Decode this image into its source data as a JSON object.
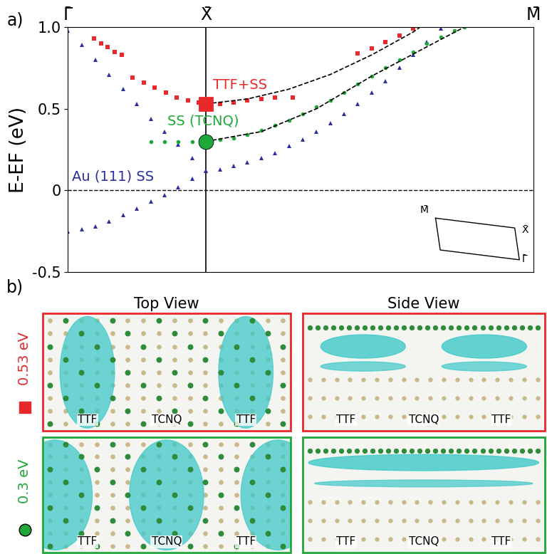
{
  "chart_data": {
    "type": "line",
    "panel_label": "a)",
    "y_label": "E-EF (eV)",
    "xlim": [
      0,
      3.37
    ],
    "xticks": [
      {
        "value": 0,
        "label": "Γ̄"
      },
      {
        "value": 1,
        "label": "X̄"
      },
      {
        "value": 3.37,
        "label": "M̄"
      }
    ],
    "ylim": [
      -0.5,
      1.0
    ],
    "yticks": [
      {
        "value": -0.5,
        "label": "-0.5"
      },
      0,
      {
        "value": 0.5,
        "label": "0.5"
      },
      {
        "value": 1.0,
        "label": "1.0"
      }
    ],
    "series": [
      {
        "color": "#2b2f9c",
        "marker": "triangle",
        "line_style": "none",
        "x": [
          0,
          0.1,
          0.2,
          0.3,
          0.4,
          0.5,
          0.6,
          0.7,
          0.8,
          0.9,
          1.0
        ],
        "values": [
          -0.25,
          -0.24,
          -0.22,
          -0.19,
          -0.15,
          -0.11,
          -0.07,
          -0.03,
          0.02,
          0.07,
          0.12
        ]
      },
      {
        "color": "#2b2f9c",
        "marker": "triangle",
        "line_style": "none",
        "x": [
          0,
          0.1,
          0.2,
          0.3,
          0.4,
          0.5,
          0.6,
          0.7,
          0.8,
          0.9,
          1.0,
          1.1,
          1.2,
          1.3,
          1.4,
          1.5,
          1.6,
          1.7,
          1.8,
          1.9,
          2.0,
          2.1,
          2.2,
          2.3,
          2.4,
          2.5,
          2.6,
          2.7
        ],
        "values": [
          0.98,
          0.89,
          0.8,
          0.71,
          0.62,
          0.53,
          0.44,
          0.36,
          0.28,
          0.2,
          0.12,
          0.13,
          0.15,
          0.17,
          0.2,
          0.23,
          0.27,
          0.31,
          0.36,
          0.41,
          0.47,
          0.53,
          0.6,
          0.67,
          0.75,
          0.83,
          0.91,
          0.99
        ]
      },
      {
        "color": "#1fa83a",
        "marker": "circle",
        "line_style": "none",
        "x": [
          0.6,
          0.7,
          0.8,
          0.9,
          1.0,
          1.1,
          1.2,
          1.3,
          1.4,
          1.5,
          1.6,
          1.7,
          1.8,
          1.9,
          2.0,
          2.1,
          2.2,
          2.3,
          2.4,
          2.5,
          2.6,
          2.7,
          2.8,
          2.87
        ],
        "values": [
          0.3,
          0.3,
          0.3,
          0.3,
          0.3,
          0.31,
          0.32,
          0.34,
          0.37,
          0.4,
          0.43,
          0.47,
          0.51,
          0.55,
          0.6,
          0.65,
          0.7,
          0.75,
          0.8,
          0.85,
          0.9,
          0.94,
          0.98,
          1.0
        ]
      },
      {
        "color": "#e8282b",
        "marker": "square",
        "line_style": "none",
        "x": [
          0.19,
          0.24,
          0.29,
          0.34,
          0.39,
          null,
          0.47,
          0.55,
          0.63,
          0.71,
          0.79,
          0.87,
          0.95,
          1.0,
          1.1,
          1.2,
          1.3,
          1.4,
          1.5,
          1.63,
          null,
          2.1,
          2.2,
          2.3,
          2.4,
          2.5
        ],
        "values": [
          0.93,
          0.9,
          0.88,
          0.85,
          0.83,
          null,
          0.69,
          0.66,
          0.63,
          0.6,
          0.57,
          0.55,
          0.54,
          0.53,
          0.53,
          0.54,
          0.55,
          0.56,
          0.57,
          0.57,
          null,
          0.84,
          0.87,
          0.91,
          0.95,
          0.99
        ]
      },
      {
        "color": "#000000",
        "line_style": "dashed",
        "x": [
          1.0,
          1.3,
          1.6,
          1.9,
          2.2,
          2.5,
          2.55
        ],
        "values": [
          0.53,
          0.56,
          0.62,
          0.71,
          0.83,
          0.97,
          1.0
        ]
      },
      {
        "color": "#000000",
        "line_style": "dashed",
        "x": [
          1.0,
          1.4,
          1.8,
          2.2,
          2.6,
          2.87
        ],
        "values": [
          0.3,
          0.36,
          0.5,
          0.7,
          0.88,
          1.0
        ]
      }
    ],
    "highlights": [
      {
        "x": 1,
        "y": 0.53,
        "color": "#e8282b",
        "marker": "square"
      },
      {
        "x": 1,
        "y": 0.3,
        "color": "#1fa83a",
        "marker": "circle"
      }
    ],
    "annotations": [
      {
        "text": "TTF+SS",
        "x": 1.05,
        "y": 0.62,
        "color": "#e8282b"
      },
      {
        "text": "SS (TCNQ)",
        "x": 0.72,
        "y": 0.4,
        "color": "#1fa83a"
      },
      {
        "text": "Au (111) SS",
        "x": 0.03,
        "y": 0.06,
        "color": "#2b2f9c"
      }
    ],
    "inset_labels": [
      "M̄",
      "X̄",
      "Γ̄"
    ]
  },
  "panel_b": {
    "panel_label": "b)",
    "column_titles": [
      "Top View",
      "Side View"
    ],
    "rows": [
      {
        "label": "0.53 eV",
        "color": "#e8282b",
        "marker": "square",
        "molecules": [
          "TTF",
          "TCNQ",
          "TTF"
        ]
      },
      {
        "label": "0.3 eV",
        "color": "#1fa83a",
        "marker": "circle",
        "molecules": [
          "TTF",
          "TCNQ",
          "TTF"
        ]
      }
    ]
  }
}
